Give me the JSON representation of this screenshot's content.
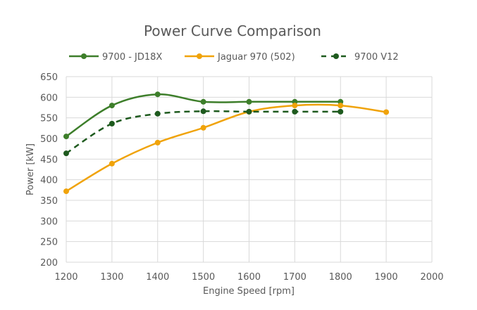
{
  "chart_data": {
    "type": "line",
    "title": "Power Curve Comparison",
    "xlabel": "Engine Speed [rpm]",
    "ylabel": "Power [kW]",
    "xlim": [
      1200,
      2000
    ],
    "ylim": [
      200,
      650
    ],
    "xticks": [
      1200,
      1300,
      1400,
      1500,
      1600,
      1700,
      1800,
      1900,
      2000
    ],
    "yticks": [
      200,
      250,
      300,
      350,
      400,
      450,
      500,
      550,
      600,
      650
    ],
    "grid": true,
    "legend_position": "top",
    "series": [
      {
        "name": "9700 - JD18X",
        "color": "#3d7e2a",
        "dashed": false,
        "x": [
          1200,
          1300,
          1400,
          1500,
          1600,
          1700,
          1800
        ],
        "y": [
          505,
          580,
          607,
          589,
          589,
          589,
          589
        ]
      },
      {
        "name": "Jaguar 970 (502)",
        "color": "#f0a30a",
        "dashed": false,
        "x": [
          1200,
          1300,
          1400,
          1500,
          1600,
          1700,
          1800,
          1900
        ],
        "y": [
          372,
          439,
          490,
          526,
          565,
          580,
          580,
          564
        ]
      },
      {
        "name": "9700 V12",
        "color": "#1e5a1e",
        "dashed": true,
        "x": [
          1200,
          1300,
          1400,
          1500,
          1600,
          1700,
          1800
        ],
        "y": [
          464,
          536,
          560,
          566,
          565,
          565,
          565
        ]
      }
    ]
  }
}
